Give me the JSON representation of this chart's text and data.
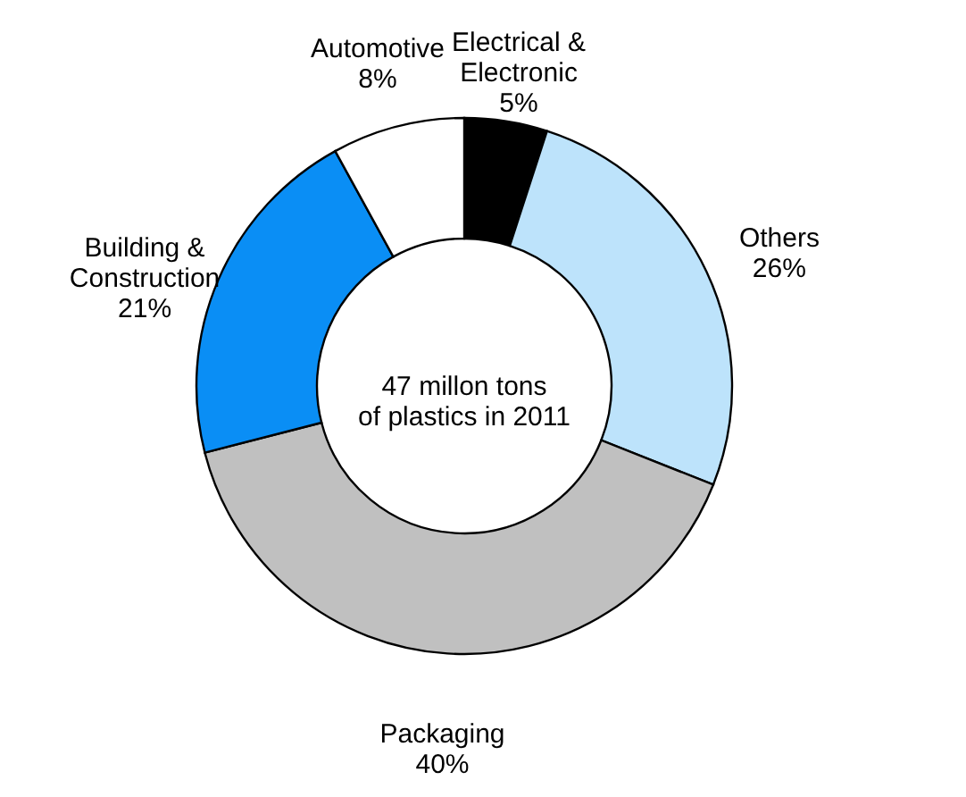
{
  "chart_data": {
    "type": "donut",
    "categories": [
      "Electrical & Electronic",
      "Others",
      "Packaging",
      "Building & Construction",
      "Automotive"
    ],
    "values": [
      5,
      26,
      40,
      21,
      8
    ],
    "value_labels": [
      "5%",
      "26%",
      "40%",
      "21%",
      "8%"
    ],
    "colors": [
      "#000000",
      "#bde3fb",
      "#c0c0c0",
      "#0a8ef5",
      "#ffffff"
    ],
    "annotations": [
      "47 millon tons\nof plastics in 2011"
    ]
  }
}
